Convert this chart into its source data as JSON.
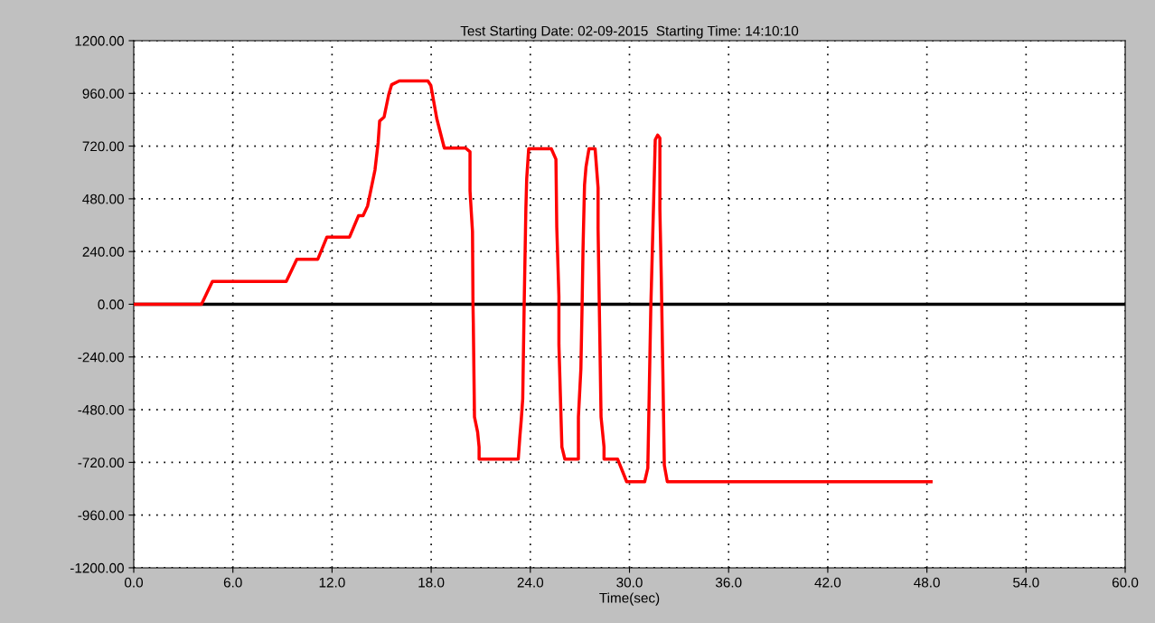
{
  "chart_data": {
    "type": "line",
    "title": "Test Starting Date: 02-09-2015  Starting Time: 14:10:10",
    "xlabel": "Time(sec)",
    "xlim": [
      0,
      60
    ],
    "ylim": [
      -1200,
      1200
    ],
    "xticks": [
      {
        "value": 0,
        "label": "0.0"
      },
      {
        "value": 6,
        "label": "6.0"
      },
      {
        "value": 12,
        "label": "12.0"
      },
      {
        "value": 18,
        "label": "18.0"
      },
      {
        "value": 24,
        "label": "24.0"
      },
      {
        "value": 30,
        "label": "30.0"
      },
      {
        "value": 36,
        "label": "36.0"
      },
      {
        "value": 42,
        "label": "42.0"
      },
      {
        "value": 48,
        "label": "48.0"
      },
      {
        "value": 54,
        "label": "54.0"
      },
      {
        "value": 60,
        "label": "60.0"
      }
    ],
    "yticks": [
      {
        "value": 1200,
        "label": "1200.00"
      },
      {
        "value": 960,
        "label": "960.00"
      },
      {
        "value": 720,
        "label": "720.00"
      },
      {
        "value": 480,
        "label": "480.00"
      },
      {
        "value": 240,
        "label": "240.00"
      },
      {
        "value": 0,
        "label": "0.00"
      },
      {
        "value": -240,
        "label": "-240.00"
      },
      {
        "value": -480,
        "label": "-480.00"
      },
      {
        "value": -720,
        "label": "-720.00"
      },
      {
        "value": -960,
        "label": "-960.00"
      },
      {
        "value": -1200,
        "label": "-1200.00"
      }
    ],
    "grid": true,
    "line_style": "solid",
    "marker": "none",
    "ref_lines": [
      {
        "axis": "y",
        "value": 0,
        "color": "#000000",
        "line_style": "solid"
      }
    ],
    "series": [
      {
        "color": "#ff0000",
        "x": [
          0,
          4.1,
          4.76,
          9.23,
          9.87,
          11.14,
          11.69,
          13.06,
          13.6,
          13.88,
          14.15,
          14.6,
          14.79,
          14.88,
          15.15,
          15.43,
          15.61,
          16.07,
          17.8,
          17.98,
          18.34,
          18.71,
          18.8,
          20.08,
          20.35,
          20.35,
          20.5,
          20.53,
          20.55,
          20.62,
          20.81,
          20.9,
          20.9,
          23.27,
          23.36,
          23.45,
          23.54,
          23.63,
          23.73,
          23.78,
          23.9,
          25.27,
          25.55,
          25.6,
          25.73,
          25.73,
          25.82,
          25.91,
          26.09,
          26.91,
          26.91,
          27.06,
          27.13,
          27.19,
          27.28,
          27.37,
          27.55,
          27.92,
          28.1,
          28.1,
          28.19,
          28.28,
          28.46,
          28.46,
          29.28,
          29.65,
          29.83,
          30.92,
          31.11,
          31.2,
          31.29,
          31.38,
          31.47,
          31.56,
          31.71,
          31.84,
          31.84,
          31.93,
          32.02,
          32.11,
          32.29,
          48.25
        ],
        "values": [
          0,
          0,
          104,
          104,
          205,
          205,
          306,
          306,
          403,
          403,
          447,
          612,
          736,
          834,
          852,
          955,
          1000,
          1017,
          1017,
          996,
          845,
          736,
          711,
          711,
          694,
          516,
          331,
          0,
          -88,
          -513,
          -582,
          -650,
          -705,
          -705,
          -609,
          -527,
          -431,
          8,
          434,
          571,
          708,
          708,
          660,
          351,
          36,
          -184,
          -417,
          -650,
          -705,
          -705,
          -513,
          -294,
          -19,
          255,
          543,
          626,
          708,
          708,
          530,
          344,
          -81,
          -513,
          -650,
          -705,
          -705,
          -774,
          -808,
          -808,
          -746,
          -383,
          -19,
          235,
          489,
          749,
          770,
          756,
          434,
          104,
          -307,
          -733,
          -808,
          -808
        ]
      }
    ]
  }
}
